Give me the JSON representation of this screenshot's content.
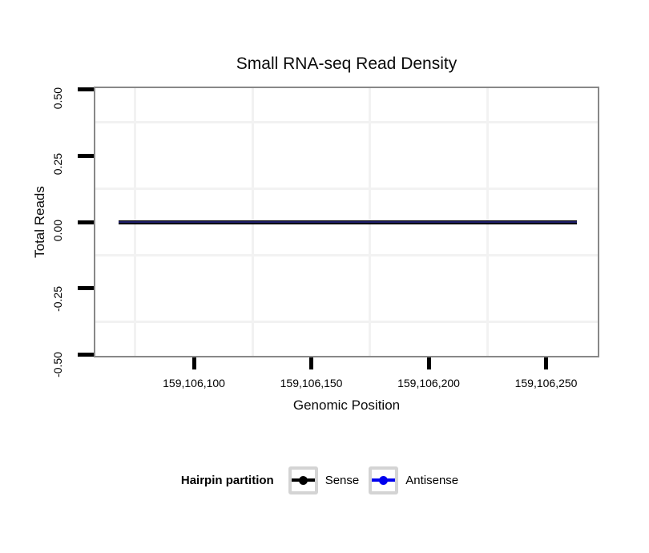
{
  "figure": {
    "background": "#FFFFFF"
  },
  "chart_data": {
    "type": "line",
    "title": "Small RNA-seq Read Density",
    "xlabel": "Genomic Position",
    "ylabel": "Total Reads",
    "xlim": [
      159106058,
      159106272
    ],
    "ylim": [
      -0.505,
      0.505
    ],
    "x_ticks": {
      "values": [
        159106100,
        159106150,
        159106200,
        159106250
      ],
      "labels": [
        "159,106,100",
        "159,106,150",
        "159,106,200",
        "159,106,250"
      ]
    },
    "y_ticks": {
      "values": [
        0.5,
        0.25,
        0.0,
        -0.25,
        -0.5
      ],
      "labels": [
        "0.50",
        "0.25",
        "0.00",
        "-0.25",
        "-0.50"
      ]
    },
    "grid": "minor gridlines only, very light gray, no major gridlines",
    "minor_grid_x": [
      159106075,
      159106125,
      159106175,
      159106225
    ],
    "minor_grid_y": [
      0.375,
      0.125,
      -0.125,
      -0.375
    ],
    "legend_position": "bottom",
    "series": [
      {
        "name": "Sense",
        "color": "#000000",
        "x": [
          159106068,
          159106263
        ],
        "y": [
          0,
          0
        ]
      },
      {
        "name": "Antisense",
        "color": "#0000EE",
        "x": [
          159106068,
          159106263
        ],
        "y": [
          0,
          0
        ]
      }
    ]
  },
  "legend": {
    "title": "Hairpin partition",
    "items": [
      {
        "label": "Sense",
        "color": "#000000"
      },
      {
        "label": "Antisense",
        "color": "#0000EE"
      }
    ]
  },
  "style": {
    "panel_border_color": "#888888",
    "minor_grid_color": "#F2F2F2",
    "tick_color": "#000000",
    "text_color": "#000000",
    "legend_key_border_color": "#D4D4D4",
    "overlap_line_color": "#1F1F6B"
  }
}
